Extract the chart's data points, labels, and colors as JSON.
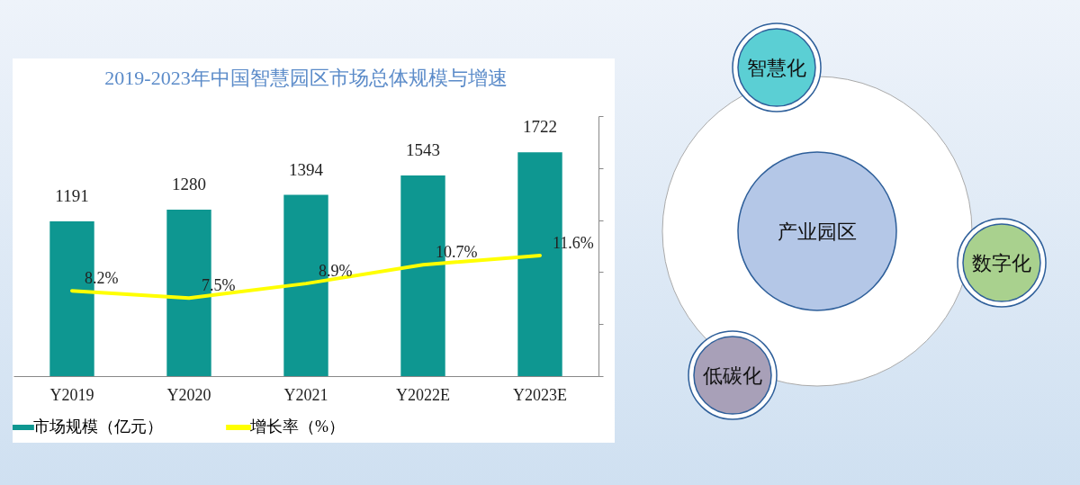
{
  "chart_data": [
    {
      "type": "bar",
      "title": "2019-2023年中国智慧园区市场总体规模与增速",
      "categories": [
        "Y2019",
        "Y2020",
        "Y2021",
        "Y2022E",
        "Y2023E"
      ],
      "ylim": [
        0,
        2000
      ],
      "y2lim": [
        0,
        25
      ],
      "y2ticks": [
        {
          "value": 0,
          "label": null
        },
        {
          "value": 5,
          "label": null
        },
        {
          "value": 10,
          "label": null
        },
        {
          "value": 15,
          "label": null
        },
        {
          "value": 20,
          "label": null
        },
        {
          "value": 25,
          "label": null
        }
      ],
      "tick_labels": "x",
      "legend": "bottom",
      "series": [
        {
          "name": "市场规模（亿元）",
          "type": "bar",
          "color": "#0e9791",
          "values": [
            1191,
            1280,
            1394,
            1543,
            1722
          ],
          "value_labels": [
            "1191",
            "1280",
            "1394",
            "1543",
            "1722"
          ]
        },
        {
          "name": "增长率（%）",
          "type": "line",
          "axis": "y2",
          "color": "#ffff00",
          "values": [
            8.2,
            7.5,
            8.9,
            10.7,
            11.6
          ],
          "value_labels": [
            "8.2%",
            "7.5%",
            "8.9%",
            "10.7%",
            "11.6%"
          ]
        }
      ]
    },
    {
      "type": "other",
      "annotations": [
        "产业园区",
        "智慧化",
        "数字化",
        "低碳化"
      ]
    }
  ]
}
